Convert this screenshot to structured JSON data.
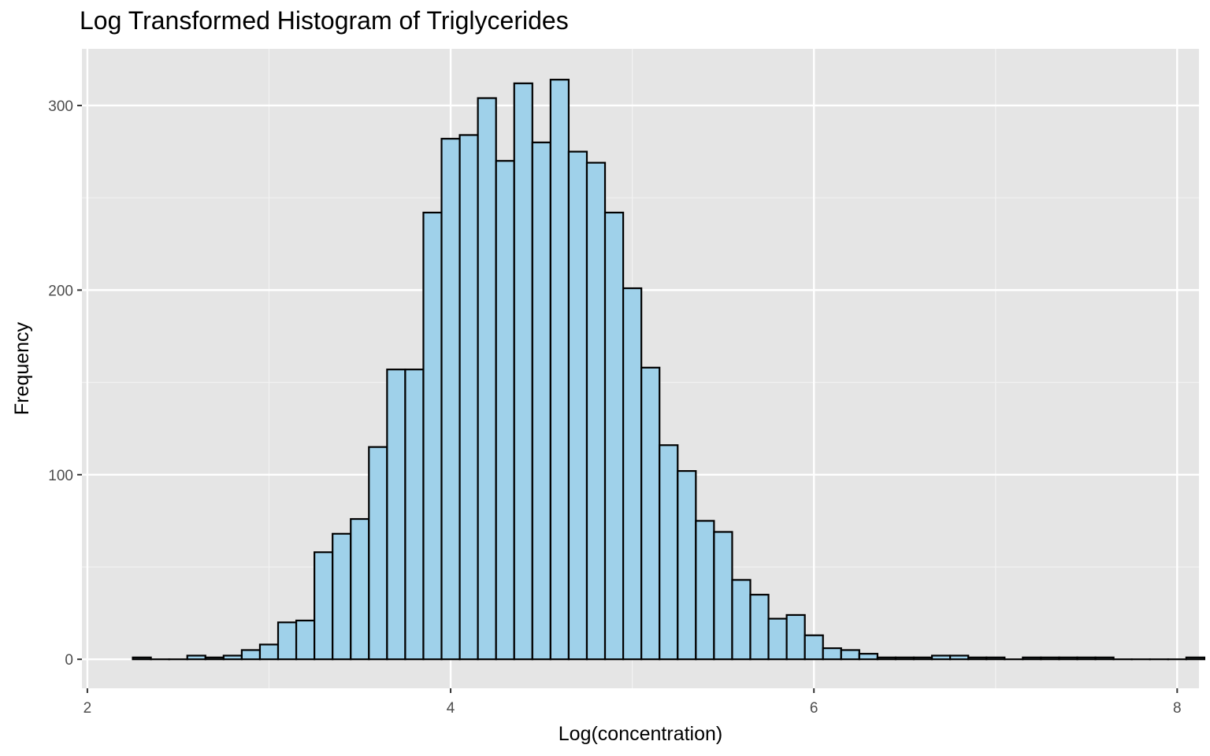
{
  "chart_data": {
    "type": "bar",
    "title": "Log Transformed Histogram of Triglycerides",
    "xlabel": "Log(concentration)",
    "ylabel": "Frequency",
    "xlim": [
      1.97,
      8.12
    ],
    "ylim": [
      -15.7,
      330.7
    ],
    "x_ticks": [
      2,
      4,
      6,
      8
    ],
    "y_ticks": [
      0,
      100,
      200,
      300
    ],
    "grid": true,
    "bin_width": 0.1,
    "bin_start": 2.25,
    "values": [
      1,
      0,
      0,
      2,
      1,
      2,
      5,
      8,
      20,
      21,
      58,
      68,
      76,
      115,
      157,
      157,
      242,
      282,
      284,
      304,
      270,
      312,
      280,
      314,
      275,
      269,
      242,
      201,
      158,
      116,
      102,
      75,
      69,
      43,
      35,
      22,
      24,
      13,
      6,
      5,
      3,
      1,
      1,
      1,
      2,
      2,
      1,
      1,
      0,
      1,
      1,
      1,
      1,
      1,
      0,
      0,
      0,
      0,
      1
    ],
    "colors": {
      "bar_fill": "#9fd1ea",
      "bar_stroke": "#000000",
      "panel_bg": "#e5e5e5",
      "grid_major": "#ffffff",
      "grid_minor": "#f2f2f2"
    }
  }
}
